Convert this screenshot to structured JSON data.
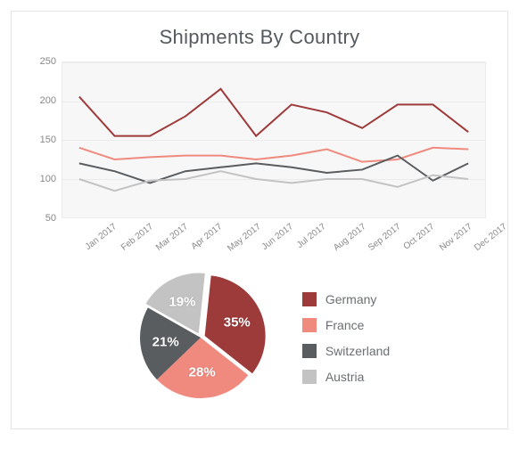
{
  "title": "Shipments By Country",
  "line_chart": {
    "type": "line",
    "background_color": "#f7f7f7",
    "grid_color": "#ececec",
    "ylim": [
      50,
      250
    ],
    "ytick_step": 50,
    "yticks": [
      50,
      100,
      150,
      200,
      250
    ],
    "categories": [
      "Jan 2017",
      "Feb 2017",
      "Mar 2017",
      "Apr 2017",
      "May 2017",
      "Jun 2017",
      "Jul 2017",
      "Aug 2017",
      "Sep 2017",
      "Oct 2017",
      "Nov 2017",
      "Dec 2017"
    ],
    "label_fontsize": 11,
    "line_width": 2,
    "series": [
      {
        "name": "Germany",
        "color": "#9d3a3a",
        "values": [
          205,
          155,
          155,
          180,
          215,
          155,
          195,
          185,
          165,
          195,
          195,
          160
        ]
      },
      {
        "name": "France",
        "color": "#f08a7f",
        "values": [
          140,
          125,
          128,
          130,
          130,
          125,
          130,
          138,
          122,
          125,
          140,
          138
        ]
      },
      {
        "name": "Switzerland",
        "color": "#5a5d60",
        "values": [
          120,
          110,
          95,
          110,
          115,
          120,
          115,
          108,
          112,
          130,
          98,
          120
        ]
      },
      {
        "name": "Austria",
        "color": "#c3c3c3",
        "values": [
          100,
          85,
          98,
          100,
          110,
          100,
          95,
          100,
          100,
          90,
          105,
          100
        ]
      }
    ]
  },
  "pie_chart": {
    "type": "pie",
    "start_angle_deg": -84,
    "slices": [
      {
        "name": "Germany",
        "label": "35%",
        "value": 35,
        "color": "#9d3a3a",
        "exploded": true
      },
      {
        "name": "France",
        "label": "28%",
        "value": 28,
        "color": "#f08a7f",
        "exploded": false
      },
      {
        "name": "Switzerland",
        "label": "21%",
        "value": 21,
        "color": "#5a5d60",
        "exploded": false
      },
      {
        "name": "Austria",
        "label": "19%",
        "value": 19,
        "color": "#c3c3c3",
        "exploded": true
      }
    ],
    "label_color": "#ffffff",
    "label_fontsize": 15
  },
  "legend": {
    "items": [
      {
        "label": "Germany",
        "color": "#9d3a3a"
      },
      {
        "label": "France",
        "color": "#f08a7f"
      },
      {
        "label": "Switzerland",
        "color": "#5a5d60"
      },
      {
        "label": "Austria",
        "color": "#c3c3c3"
      }
    ]
  }
}
